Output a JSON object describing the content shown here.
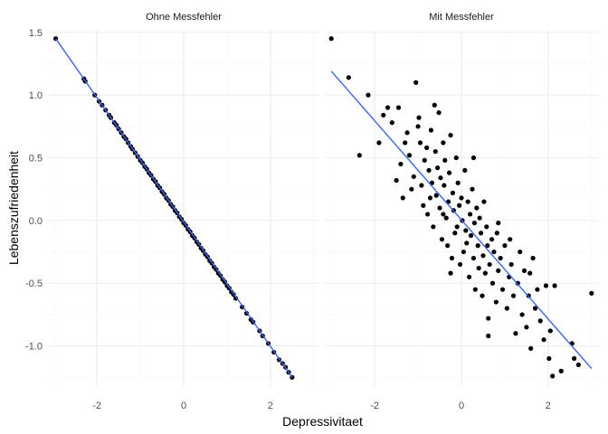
{
  "chart_data": {
    "type": "scatter",
    "xlabel": "Depressivitaet",
    "ylabel": "Lebenszufriedenheit",
    "xlim": [
      -3.15,
      3.15
    ],
    "ylim": [
      -1.32,
      1.52
    ],
    "x_ticks": [
      -2,
      0,
      2
    ],
    "x_tick_labels": [
      "-2",
      "0",
      "2"
    ],
    "y_ticks": [
      -1.0,
      -0.5,
      0.0,
      0.5,
      1.0,
      1.5
    ],
    "y_tick_labels": [
      "-1.0",
      "-0.5",
      "0.0",
      "0.5",
      "1.0",
      "1.5"
    ],
    "grid": true,
    "point_color": "#000000",
    "line_color": "#3366FF",
    "panels": [
      {
        "strip": "Ohne Messfehler",
        "fit_line": {
          "x": [
            -2.95,
            2.5
          ],
          "y": [
            1.45,
            -1.25
          ]
        },
        "points": [
          [
            -2.95,
            1.45
          ],
          [
            -2.3,
            1.13
          ],
          [
            -2.27,
            1.11
          ],
          [
            -2.05,
            1.0
          ],
          [
            -1.95,
            0.95
          ],
          [
            -1.88,
            0.92
          ],
          [
            -1.8,
            0.88
          ],
          [
            -1.72,
            0.84
          ],
          [
            -1.68,
            0.82
          ],
          [
            -1.6,
            0.78
          ],
          [
            -1.55,
            0.76
          ],
          [
            -1.5,
            0.73
          ],
          [
            -1.44,
            0.7
          ],
          [
            -1.38,
            0.67
          ],
          [
            -1.33,
            0.65
          ],
          [
            -1.28,
            0.62
          ],
          [
            -1.22,
            0.59
          ],
          [
            -1.18,
            0.57
          ],
          [
            -1.12,
            0.54
          ],
          [
            -1.06,
            0.51
          ],
          [
            -1.0,
            0.48
          ],
          [
            -0.95,
            0.46
          ],
          [
            -0.9,
            0.43
          ],
          [
            -0.85,
            0.41
          ],
          [
            -0.8,
            0.38
          ],
          [
            -0.75,
            0.36
          ],
          [
            -0.7,
            0.33
          ],
          [
            -0.65,
            0.31
          ],
          [
            -0.6,
            0.28
          ],
          [
            -0.55,
            0.26
          ],
          [
            -0.5,
            0.23
          ],
          [
            -0.45,
            0.21
          ],
          [
            -0.4,
            0.18
          ],
          [
            -0.35,
            0.16
          ],
          [
            -0.3,
            0.13
          ],
          [
            -0.25,
            0.11
          ],
          [
            -0.2,
            0.08
          ],
          [
            -0.15,
            0.06
          ],
          [
            -0.1,
            0.03
          ],
          [
            -0.05,
            0.01
          ],
          [
            0.0,
            -0.02
          ],
          [
            0.05,
            -0.04
          ],
          [
            0.1,
            -0.07
          ],
          [
            0.15,
            -0.09
          ],
          [
            0.2,
            -0.12
          ],
          [
            0.25,
            -0.14
          ],
          [
            0.3,
            -0.17
          ],
          [
            0.35,
            -0.19
          ],
          [
            0.4,
            -0.22
          ],
          [
            0.45,
            -0.24
          ],
          [
            0.5,
            -0.27
          ],
          [
            0.55,
            -0.29
          ],
          [
            0.6,
            -0.32
          ],
          [
            0.65,
            -0.34
          ],
          [
            0.7,
            -0.37
          ],
          [
            0.75,
            -0.39
          ],
          [
            0.8,
            -0.42
          ],
          [
            0.85,
            -0.44
          ],
          [
            0.9,
            -0.47
          ],
          [
            0.95,
            -0.49
          ],
          [
            1.0,
            -0.52
          ],
          [
            1.05,
            -0.54
          ],
          [
            1.1,
            -0.57
          ],
          [
            1.15,
            -0.59
          ],
          [
            1.2,
            -0.62
          ],
          [
            1.35,
            -0.69
          ],
          [
            1.45,
            -0.74
          ],
          [
            1.55,
            -0.79
          ],
          [
            1.6,
            -0.81
          ],
          [
            1.75,
            -0.88
          ],
          [
            1.82,
            -0.92
          ],
          [
            1.95,
            -0.98
          ],
          [
            2.08,
            -1.05
          ],
          [
            2.2,
            -1.11
          ],
          [
            2.28,
            -1.14
          ],
          [
            2.35,
            -1.17
          ],
          [
            2.42,
            -1.21
          ],
          [
            2.5,
            -1.25
          ]
        ]
      },
      {
        "strip": "Mit Messfehler",
        "fit_line": {
          "x": [
            -3.0,
            3.0
          ],
          "y": [
            1.19,
            -1.18
          ]
        },
        "points": [
          [
            -3.0,
            1.45
          ],
          [
            -2.6,
            1.14
          ],
          [
            -2.35,
            0.52
          ],
          [
            -2.15,
            1.0
          ],
          [
            -1.9,
            0.62
          ],
          [
            -1.8,
            0.84
          ],
          [
            -1.7,
            0.9
          ],
          [
            -1.6,
            0.78
          ],
          [
            -1.5,
            0.32
          ],
          [
            -1.4,
            0.45
          ],
          [
            -1.35,
            0.18
          ],
          [
            -1.25,
            0.7
          ],
          [
            -1.2,
            0.52
          ],
          [
            -1.1,
            0.35
          ],
          [
            -1.05,
            1.1
          ],
          [
            -1.0,
            0.75
          ],
          [
            -0.95,
            0.62
          ],
          [
            -0.92,
            0.28
          ],
          [
            -0.88,
            0.12
          ],
          [
            -0.85,
            0.48
          ],
          [
            -0.8,
            0.58
          ],
          [
            -0.78,
            0.05
          ],
          [
            -0.75,
            0.4
          ],
          [
            -0.72,
            0.18
          ],
          [
            -0.7,
            0.72
          ],
          [
            -0.68,
            0.3
          ],
          [
            -0.65,
            -0.05
          ],
          [
            -0.6,
            0.55
          ],
          [
            -0.58,
            0.2
          ],
          [
            -0.55,
            0.42
          ],
          [
            -0.52,
            0.86
          ],
          [
            -0.5,
            0.1
          ],
          [
            -0.48,
            0.34
          ],
          [
            -0.45,
            -0.15
          ],
          [
            -0.42,
            0.62
          ],
          [
            -0.4,
            0.28
          ],
          [
            -0.38,
            0.48
          ],
          [
            -0.35,
            0.02
          ],
          [
            -0.32,
            -0.2
          ],
          [
            -0.3,
            0.15
          ],
          [
            -0.28,
            0.38
          ],
          [
            -0.25,
            0.68
          ],
          [
            -0.22,
            -0.3
          ],
          [
            -0.2,
            0.22
          ],
          [
            -0.18,
            0.08
          ],
          [
            -0.15,
            -0.1
          ],
          [
            -0.12,
            0.5
          ],
          [
            -0.1,
            -0.05
          ],
          [
            -0.08,
            0.3
          ],
          [
            -0.05,
            0.12
          ],
          [
            -0.03,
            -0.35
          ],
          [
            0.0,
            0.18
          ],
          [
            0.02,
            0.0
          ],
          [
            0.05,
            -0.25
          ],
          [
            0.08,
            0.4
          ],
          [
            0.1,
            -0.08
          ],
          [
            0.12,
            -0.18
          ],
          [
            0.15,
            0.15
          ],
          [
            0.18,
            -0.45
          ],
          [
            0.2,
            0.05
          ],
          [
            0.22,
            -0.12
          ],
          [
            0.25,
            0.25
          ],
          [
            0.28,
            -0.3
          ],
          [
            0.3,
            -0.02
          ],
          [
            0.32,
            -0.55
          ],
          [
            0.35,
            0.1
          ],
          [
            0.38,
            -0.2
          ],
          [
            0.4,
            -0.38
          ],
          [
            0.42,
            0.02
          ],
          [
            0.45,
            -0.1
          ],
          [
            0.48,
            -0.6
          ],
          [
            0.5,
            -0.28
          ],
          [
            0.52,
            0.15
          ],
          [
            0.55,
            -0.42
          ],
          [
            0.58,
            -0.05
          ],
          [
            0.6,
            -0.2
          ],
          [
            0.62,
            -0.78
          ],
          [
            0.65,
            -0.35
          ],
          [
            0.7,
            -0.15
          ],
          [
            0.72,
            -0.5
          ],
          [
            0.75,
            -0.25
          ],
          [
            0.8,
            -0.65
          ],
          [
            0.82,
            -0.1
          ],
          [
            0.85,
            -0.4
          ],
          [
            0.9,
            -0.3
          ],
          [
            0.95,
            -0.55
          ],
          [
            1.0,
            -0.2
          ],
          [
            1.05,
            -0.7
          ],
          [
            1.1,
            -0.45
          ],
          [
            1.15,
            -0.35
          ],
          [
            1.2,
            -0.6
          ],
          [
            1.25,
            -0.9
          ],
          [
            1.3,
            -0.5
          ],
          [
            1.35,
            -0.25
          ],
          [
            1.4,
            -0.75
          ],
          [
            1.45,
            -0.4
          ],
          [
            1.5,
            -0.85
          ],
          [
            1.55,
            -0.6
          ],
          [
            1.6,
            -1.02
          ],
          [
            1.65,
            -0.3
          ],
          [
            1.7,
            -0.7
          ],
          [
            1.75,
            -0.55
          ],
          [
            1.82,
            -0.8
          ],
          [
            1.9,
            -0.95
          ],
          [
            1.95,
            -0.52
          ],
          [
            2.02,
            -1.1
          ],
          [
            2.05,
            -0.88
          ],
          [
            2.1,
            -1.24
          ],
          [
            2.15,
            -0.52
          ],
          [
            2.3,
            -1.2
          ],
          [
            2.55,
            -0.98
          ],
          [
            2.6,
            -1.1
          ],
          [
            2.7,
            -1.15
          ],
          [
            3.0,
            -0.58
          ],
          [
            -1.45,
            0.9
          ],
          [
            -1.3,
            0.62
          ],
          [
            -1.15,
            0.25
          ],
          [
            -0.98,
            0.82
          ],
          [
            -0.62,
            0.92
          ],
          [
            -0.42,
            0.05
          ],
          [
            0.28,
            0.5
          ],
          [
            0.62,
            -0.92
          ],
          [
            1.12,
            -0.15
          ],
          [
            1.58,
            -0.42
          ],
          [
            0.85,
            -0.02
          ],
          [
            -0.25,
            -0.42
          ]
        ]
      }
    ]
  }
}
